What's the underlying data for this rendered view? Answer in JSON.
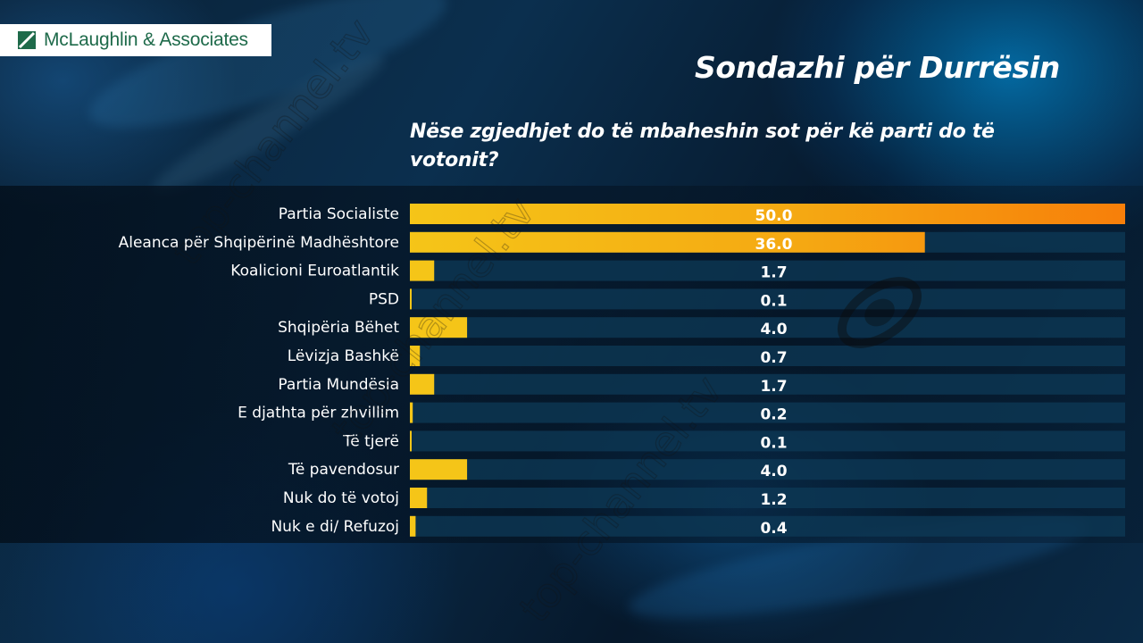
{
  "logo": {
    "text": "McLaughlin & Associates"
  },
  "header": {
    "title": "Sondazhi për Durrësin",
    "question": "Nëse zgjedhjet do të mbaheshin sot për kë parti do të votonit?"
  },
  "watermark": {
    "text": "top-channel.tv"
  },
  "colors": {
    "bar_start": "#f5c518",
    "bar_end": "#f77f0a",
    "track": "#0e3a57",
    "text": "#ffffff"
  },
  "chart_data": {
    "type": "bar",
    "orientation": "horizontal",
    "categories": [
      "Partia Socialiste",
      "Aleanca për Shqipërinë Madhështore",
      "Koalicioni Euroatlantik",
      "PSD",
      "Shqipëria Bëhet",
      "Lëvizja Bashkë",
      "Partia Mundësia",
      "E djathta për zhvillim",
      "Të tjerë",
      "Të pavendosur",
      "Nuk do të votoj",
      "Nuk e di/ Refuzoj"
    ],
    "values": [
      50.0,
      36.0,
      1.7,
      0.1,
      4.0,
      0.7,
      1.7,
      0.2,
      0.1,
      4.0,
      1.2,
      0.4
    ],
    "value_labels": [
      "50.0",
      "36.0",
      "1.7",
      "0.1",
      "4.0",
      "0.7",
      "1.7",
      "0.2",
      "0.1",
      "4.0",
      "1.2",
      "0.4"
    ],
    "xlim": [
      0,
      50
    ],
    "title": "",
    "xlabel": "",
    "ylabel": "",
    "legend": "none",
    "grid": false
  }
}
